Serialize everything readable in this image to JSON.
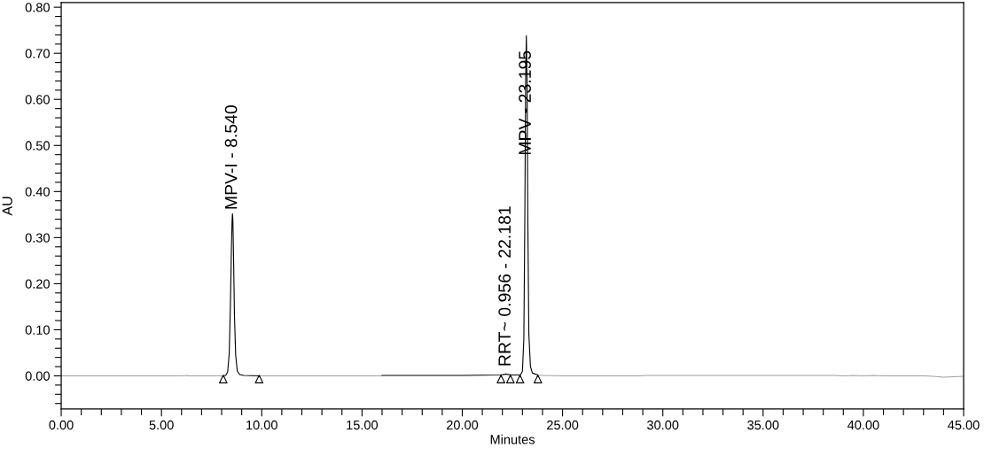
{
  "chart_data": {
    "type": "line",
    "xlabel": "Minutes",
    "ylabel": "AU",
    "xlim": [
      0,
      45
    ],
    "ylim": [
      -0.072,
      0.81
    ],
    "xticks": [
      {
        "value": 0,
        "label": "0.00"
      },
      {
        "value": 1,
        "label": null
      },
      {
        "value": 2,
        "label": null
      },
      {
        "value": 3,
        "label": null
      },
      {
        "value": 4,
        "label": null
      },
      {
        "value": 5,
        "label": "5.00"
      },
      {
        "value": 6,
        "label": null
      },
      {
        "value": 7,
        "label": null
      },
      {
        "value": 8,
        "label": null
      },
      {
        "value": 9,
        "label": null
      },
      {
        "value": 10,
        "label": "10.00"
      },
      {
        "value": 11,
        "label": null
      },
      {
        "value": 12,
        "label": null
      },
      {
        "value": 13,
        "label": null
      },
      {
        "value": 14,
        "label": null
      },
      {
        "value": 15,
        "label": "15.00"
      },
      {
        "value": 16,
        "label": null
      },
      {
        "value": 17,
        "label": null
      },
      {
        "value": 18,
        "label": null
      },
      {
        "value": 19,
        "label": null
      },
      {
        "value": 20,
        "label": "20.00"
      },
      {
        "value": 21,
        "label": null
      },
      {
        "value": 22,
        "label": null
      },
      {
        "value": 23,
        "label": null
      },
      {
        "value": 24,
        "label": null
      },
      {
        "value": 25,
        "label": "25.00"
      },
      {
        "value": 26,
        "label": null
      },
      {
        "value": 27,
        "label": null
      },
      {
        "value": 28,
        "label": null
      },
      {
        "value": 29,
        "label": null
      },
      {
        "value": 30,
        "label": "30.00"
      },
      {
        "value": 31,
        "label": null
      },
      {
        "value": 32,
        "label": null
      },
      {
        "value": 33,
        "label": null
      },
      {
        "value": 34,
        "label": null
      },
      {
        "value": 35,
        "label": "35.00"
      },
      {
        "value": 36,
        "label": null
      },
      {
        "value": 37,
        "label": null
      },
      {
        "value": 38,
        "label": null
      },
      {
        "value": 39,
        "label": null
      },
      {
        "value": 40,
        "label": "40.00"
      },
      {
        "value": 41,
        "label": null
      },
      {
        "value": 42,
        "label": null
      },
      {
        "value": 43,
        "label": null
      },
      {
        "value": 44,
        "label": null
      },
      {
        "value": 45,
        "label": "45.00"
      }
    ],
    "yticks": [
      {
        "value": -0.06,
        "label": null
      },
      {
        "value": -0.04,
        "label": null
      },
      {
        "value": -0.02,
        "label": null
      },
      {
        "value": 0,
        "label": "0.00"
      },
      {
        "value": 0.02,
        "label": null
      },
      {
        "value": 0.04,
        "label": null
      },
      {
        "value": 0.06,
        "label": null
      },
      {
        "value": 0.08,
        "label": null
      },
      {
        "value": 0.1,
        "label": "0.10"
      },
      {
        "value": 0.12,
        "label": null
      },
      {
        "value": 0.14,
        "label": null
      },
      {
        "value": 0.16,
        "label": null
      },
      {
        "value": 0.18,
        "label": null
      },
      {
        "value": 0.2,
        "label": "0.20"
      },
      {
        "value": 0.22,
        "label": null
      },
      {
        "value": 0.24,
        "label": null
      },
      {
        "value": 0.26,
        "label": null
      },
      {
        "value": 0.28,
        "label": null
      },
      {
        "value": 0.3,
        "label": "0.30"
      },
      {
        "value": 0.32,
        "label": null
      },
      {
        "value": 0.34,
        "label": null
      },
      {
        "value": 0.36,
        "label": null
      },
      {
        "value": 0.38,
        "label": null
      },
      {
        "value": 0.4,
        "label": "0.40"
      },
      {
        "value": 0.42,
        "label": null
      },
      {
        "value": 0.44,
        "label": null
      },
      {
        "value": 0.46,
        "label": null
      },
      {
        "value": 0.48,
        "label": null
      },
      {
        "value": 0.5,
        "label": "0.50"
      },
      {
        "value": 0.52,
        "label": null
      },
      {
        "value": 0.54,
        "label": null
      },
      {
        "value": 0.56,
        "label": null
      },
      {
        "value": 0.58,
        "label": null
      },
      {
        "value": 0.6,
        "label": "0.60"
      },
      {
        "value": 0.62,
        "label": null
      },
      {
        "value": 0.64,
        "label": null
      },
      {
        "value": 0.66,
        "label": null
      },
      {
        "value": 0.68,
        "label": null
      },
      {
        "value": 0.7,
        "label": "0.70"
      },
      {
        "value": 0.72,
        "label": null
      },
      {
        "value": 0.74,
        "label": null
      },
      {
        "value": 0.76,
        "label": null
      },
      {
        "value": 0.78,
        "label": null
      },
      {
        "value": 0.8,
        "label": "0.80"
      }
    ],
    "line_style": "solid",
    "series": [
      {
        "color": "#a0a0a0",
        "x": [
          0,
          2,
          4,
          6,
          6.3,
          6.35,
          7,
          7.5,
          8.0,
          8.08,
          8.5,
          9.87,
          11,
          13,
          15,
          16.0,
          20,
          23.77,
          24,
          25,
          27,
          28.8,
          29.2,
          31,
          33,
          35,
          37,
          38.5,
          39,
          39.5,
          40,
          40.5,
          41,
          42,
          43,
          43.5,
          44,
          44.5,
          45
        ],
        "values": [
          0,
          0,
          0,
          0,
          0.001,
          0,
          0,
          0,
          0,
          0,
          null,
          0,
          0,
          0,
          0,
          0,
          null,
          0.001,
          0.001,
          0,
          0,
          0,
          0.001,
          0.001,
          0.001,
          0.001,
          0.001,
          0.001,
          0,
          0.001,
          0,
          0.001,
          0,
          0,
          0,
          -0.001,
          -0.003,
          -0.002,
          -0.001
        ]
      },
      {
        "color": "#000000",
        "x": [
          8.08,
          8.2,
          8.3,
          8.38,
          8.44,
          8.49,
          8.52,
          8.54,
          8.56,
          8.59,
          8.64,
          8.7,
          8.78,
          8.9,
          9.1,
          9.87,
          12,
          16.0,
          18,
          20,
          21.9,
          22.1,
          22.181,
          22.26,
          22.5,
          22.9,
          23.0,
          23.07,
          23.12,
          23.16,
          23.195,
          23.23,
          23.27,
          23.32,
          23.4,
          23.5,
          23.77
        ],
        "values": [
          0,
          0.001,
          0.008,
          0.05,
          0.16,
          0.28,
          0.335,
          0.352,
          0.34,
          0.27,
          0.13,
          0.045,
          0.01,
          0.003,
          0.001,
          0,
          null,
          0.001,
          0.001,
          0.001,
          0.002,
          0.003,
          0.004,
          0.003,
          0.002,
          0.002,
          0.01,
          0.08,
          0.35,
          0.65,
          0.738,
          0.64,
          0.33,
          0.09,
          0.02,
          0.006,
          0.002
        ]
      },
      {
        "type": "scatter",
        "marker": "triangle",
        "color": "#000000",
        "x": [
          8.08,
          9.87,
          21.93,
          22.4,
          22.88,
          23.77
        ],
        "values": [
          -0.007,
          -0.007,
          -0.007,
          -0.007,
          -0.007,
          -0.007
        ]
      }
    ],
    "annotations": [
      {
        "text": "MPV-I - 8.540",
        "x": 8.54,
        "y": 0.352
      },
      {
        "text": "RRT~ 0.956 - 22.181",
        "x": 22.181,
        "y": 0.012
      },
      {
        "text": "MPV - 23.195",
        "x": 23.195,
        "y": 0.47
      }
    ]
  }
}
